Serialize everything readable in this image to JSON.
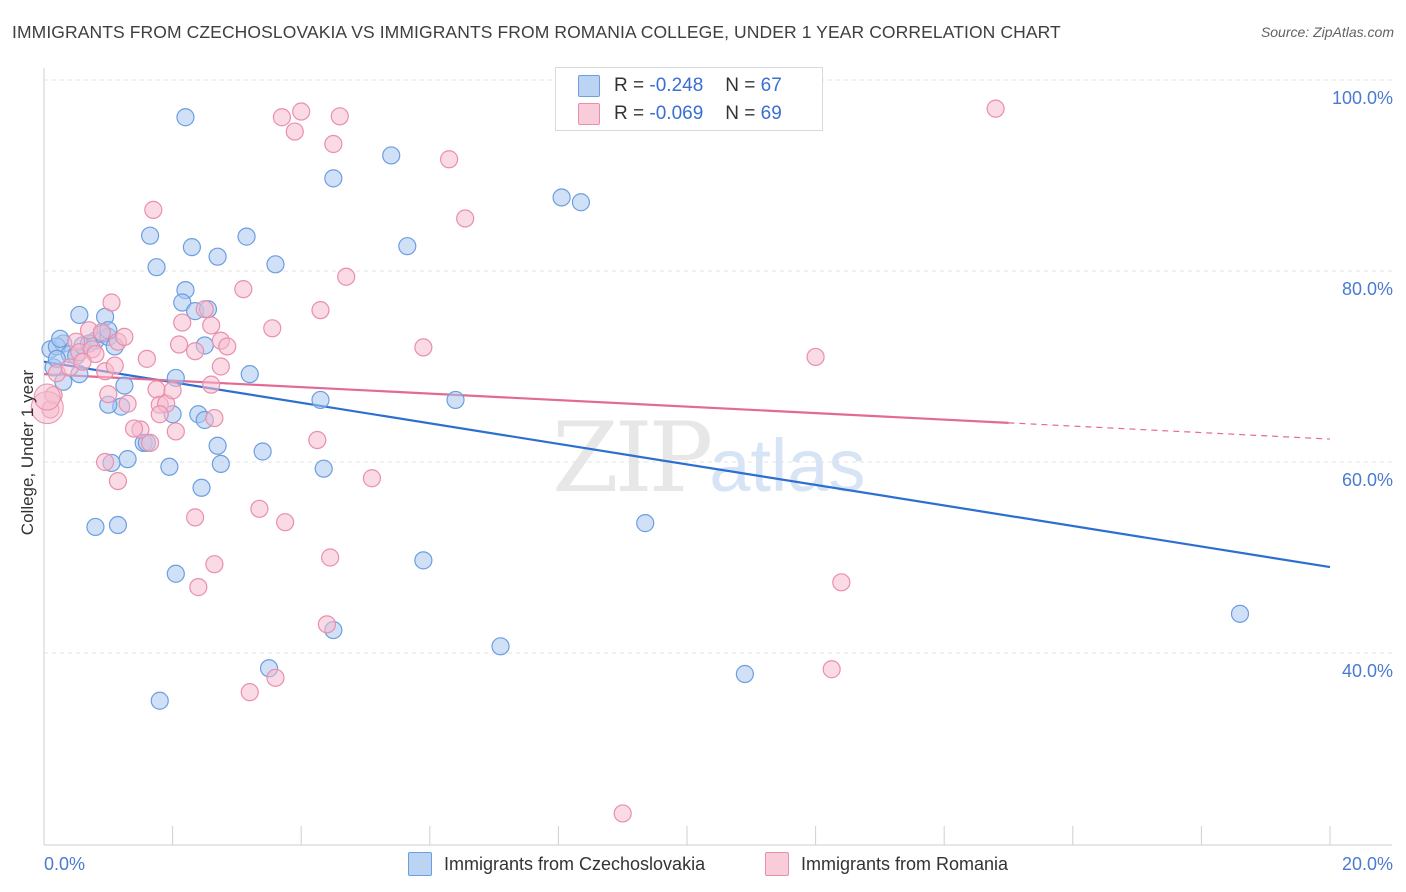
{
  "title": "IMMIGRANTS FROM CZECHOSLOVAKIA VS IMMIGRANTS FROM ROMANIA COLLEGE, UNDER 1 YEAR CORRELATION CHART",
  "source": "Source: ZipAtlas.com",
  "watermark": {
    "zip": "ZIP",
    "atlas": "atlas"
  },
  "legend": {
    "rows": [
      {
        "r_label": "R = ",
        "r_value": "-0.248",
        "n_label": "N = ",
        "n_value": "67"
      },
      {
        "r_label": "R = ",
        "r_value": "-0.069",
        "n_label": "N = ",
        "n_value": "69"
      }
    ]
  },
  "bottom_legend": [
    "Immigrants from Czechoslovakia",
    "Immigrants from Romania"
  ],
  "colors": {
    "blue_fill": "#a9c8f0",
    "blue_stroke": "#6c9ee0",
    "blue_line": "#2d6fd0",
    "pink_fill": "#f6bccd",
    "pink_stroke": "#ea8fab",
    "pink_line": "#e26b93",
    "grid": "#e3e3e3",
    "tick_text": "#4a7bd0"
  },
  "chart_data": {
    "type": "scatter",
    "title": "IMMIGRANTS FROM CZECHOSLOVAKIA VS IMMIGRANTS FROM ROMANIA COLLEGE, UNDER 1 YEAR CORRELATION CHART",
    "xlabel": "",
    "ylabel": "College, Under 1 year",
    "xlim": [
      0,
      20
    ],
    "ylim": [
      20,
      100
    ],
    "x_tick_labels": [
      "0.0%",
      "20.0%"
    ],
    "y_tick_labels": [
      "100.0%",
      "80.0%",
      "60.0%",
      "40.0%"
    ],
    "y_tick_values": [
      100,
      80,
      60,
      40
    ],
    "series": [
      {
        "name": "Immigrants from Czechoslovakia",
        "color": "blue",
        "r": -0.248,
        "n": 67,
        "trend": {
          "x0": 0,
          "y0": 70.5,
          "x1": 20,
          "y1": 49.0,
          "solid_to": 20
        },
        "points": [
          [
            0.1,
            71.8
          ],
          [
            0.3,
            72.4
          ],
          [
            0.2,
            72.1
          ],
          [
            0.4,
            71.3
          ],
          [
            0.5,
            71.1
          ],
          [
            0.6,
            72.2
          ],
          [
            0.3,
            68.4
          ],
          [
            0.55,
            69.2
          ],
          [
            0.15,
            69.9
          ],
          [
            0.55,
            75.4
          ],
          [
            0.8,
            72.7
          ],
          [
            0.9,
            73.4
          ],
          [
            0.95,
            75.2
          ],
          [
            1.0,
            73.1
          ],
          [
            1.0,
            73.8
          ],
          [
            0.25,
            72.9
          ],
          [
            1.65,
            83.7
          ],
          [
            1.75,
            80.4
          ],
          [
            2.3,
            82.5
          ],
          [
            2.2,
            78.0
          ],
          [
            2.15,
            76.7
          ],
          [
            2.7,
            81.5
          ],
          [
            3.15,
            83.6
          ],
          [
            3.6,
            80.7
          ],
          [
            2.2,
            96.1
          ],
          [
            4.5,
            89.7
          ],
          [
            5.4,
            92.1
          ],
          [
            5.65,
            82.6
          ],
          [
            8.05,
            87.7
          ],
          [
            8.35,
            87.2
          ],
          [
            1.25,
            68.0
          ],
          [
            1.2,
            65.8
          ],
          [
            1.0,
            66.0
          ],
          [
            1.55,
            62.0
          ],
          [
            1.6,
            62.0
          ],
          [
            2.0,
            65.0
          ],
          [
            2.05,
            68.8
          ],
          [
            2.4,
            65.0
          ],
          [
            2.5,
            64.4
          ],
          [
            2.5,
            72.2
          ],
          [
            2.7,
            61.7
          ],
          [
            2.75,
            59.8
          ],
          [
            3.2,
            69.2
          ],
          [
            3.4,
            61.1
          ],
          [
            1.3,
            60.3
          ],
          [
            1.05,
            59.9
          ],
          [
            1.95,
            59.5
          ],
          [
            2.45,
            57.3
          ],
          [
            4.3,
            66.5
          ],
          [
            4.35,
            59.3
          ],
          [
            6.4,
            66.5
          ],
          [
            0.8,
            53.2
          ],
          [
            1.15,
            53.4
          ],
          [
            2.05,
            48.3
          ],
          [
            5.9,
            49.7
          ],
          [
            9.35,
            53.6
          ],
          [
            4.5,
            42.4
          ],
          [
            7.1,
            40.7
          ],
          [
            3.5,
            38.4
          ],
          [
            1.8,
            35.0
          ],
          [
            10.9,
            37.8
          ],
          [
            18.6,
            44.1
          ],
          [
            2.35,
            75.8
          ],
          [
            2.55,
            76.0
          ],
          [
            0.7,
            72.4
          ],
          [
            0.2,
            70.8
          ],
          [
            1.1,
            72.1
          ]
        ]
      },
      {
        "name": "Immigrants from Romania",
        "color": "pink",
        "r": -0.069,
        "n": 69,
        "trend": {
          "x0": 0,
          "y0": 69.2,
          "x1": 20,
          "y1": 62.4,
          "solid_to": 15.0
        },
        "points": [
          [
            0.1,
            65.5
          ],
          [
            0.15,
            67.0
          ],
          [
            0.2,
            69.3
          ],
          [
            0.4,
            69.9
          ],
          [
            0.5,
            72.6
          ],
          [
            0.55,
            71.5
          ],
          [
            0.7,
            73.8
          ],
          [
            0.75,
            71.8
          ],
          [
            0.8,
            71.3
          ],
          [
            0.9,
            73.6
          ],
          [
            0.95,
            69.5
          ],
          [
            1.0,
            67.1
          ],
          [
            1.1,
            70.1
          ],
          [
            1.15,
            72.6
          ],
          [
            1.25,
            73.1
          ],
          [
            1.05,
            76.7
          ],
          [
            1.6,
            70.8
          ],
          [
            1.75,
            67.6
          ],
          [
            1.8,
            66.0
          ],
          [
            1.9,
            66.1
          ],
          [
            2.0,
            67.5
          ],
          [
            2.05,
            63.2
          ],
          [
            2.1,
            72.3
          ],
          [
            2.15,
            74.6
          ],
          [
            2.35,
            71.6
          ],
          [
            2.5,
            76.0
          ],
          [
            2.6,
            74.3
          ],
          [
            2.75,
            72.7
          ],
          [
            2.85,
            72.1
          ],
          [
            3.1,
            78.1
          ],
          [
            3.55,
            74.0
          ],
          [
            4.3,
            75.9
          ],
          [
            1.7,
            86.4
          ],
          [
            3.7,
            96.1
          ],
          [
            3.9,
            94.6
          ],
          [
            4.0,
            96.7
          ],
          [
            4.5,
            93.3
          ],
          [
            4.6,
            96.2
          ],
          [
            6.3,
            91.7
          ],
          [
            6.55,
            85.5
          ],
          [
            4.7,
            79.4
          ],
          [
            2.6,
            68.1
          ],
          [
            1.3,
            66.1
          ],
          [
            1.5,
            63.4
          ],
          [
            1.65,
            62.0
          ],
          [
            1.8,
            65.0
          ],
          [
            0.95,
            60.0
          ],
          [
            1.15,
            58.0
          ],
          [
            1.4,
            63.5
          ],
          [
            4.25,
            62.3
          ],
          [
            5.1,
            58.3
          ],
          [
            3.35,
            55.1
          ],
          [
            3.75,
            53.7
          ],
          [
            2.35,
            54.2
          ],
          [
            2.65,
            49.3
          ],
          [
            2.4,
            46.9
          ],
          [
            4.45,
            50.0
          ],
          [
            5.9,
            72.0
          ],
          [
            12.0,
            71.0
          ],
          [
            12.4,
            47.4
          ],
          [
            12.25,
            38.3
          ],
          [
            4.4,
            43.0
          ],
          [
            3.2,
            35.9
          ],
          [
            3.6,
            37.4
          ],
          [
            9.0,
            23.2
          ],
          [
            14.8,
            97.0
          ],
          [
            2.65,
            64.6
          ],
          [
            2.75,
            70.0
          ],
          [
            0.6,
            70.5
          ]
        ]
      }
    ]
  }
}
